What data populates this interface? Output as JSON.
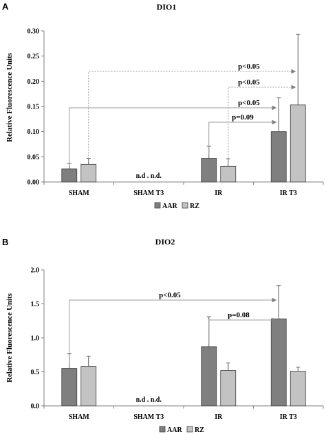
{
  "panels": [
    {
      "letter": "A"
    },
    {
      "letter": "B"
    }
  ],
  "colors": {
    "aar": "#7f7f7f",
    "rz": "#c3c3c3",
    "bar_edge": "#404040",
    "axis": "#7f7f7f",
    "bracket": "#9a9a9a",
    "arrow": "#808080"
  },
  "chart_data": [
    {
      "type": "bar",
      "title": "DIO1",
      "ylabel": "Relative Fluorescence Units",
      "xlabel": "",
      "ylim": [
        0,
        0.3
      ],
      "yticks": [
        "0.00",
        "0.05",
        "0.10",
        "0.15",
        "0.20",
        "0.25",
        "0.30"
      ],
      "categories": [
        "SHAM",
        "SHAM T3",
        "IR",
        "IR T3"
      ],
      "series": [
        {
          "name": "AAR",
          "values": [
            0.026,
            null,
            0.047,
            0.1
          ],
          "errors": [
            0.011,
            null,
            0.024,
            0.067
          ]
        },
        {
          "name": "RZ",
          "values": [
            0.035,
            null,
            0.031,
            0.153
          ],
          "errors": [
            0.012,
            null,
            0.015,
            0.14
          ]
        }
      ],
      "annotations": [
        "n.d . n.d."
      ],
      "comparisons": [
        {
          "label": "p<0.05",
          "from_category": "SHAM",
          "from_series": "RZ",
          "to_category": "IR T3",
          "to_series": "RZ",
          "style": "dotted"
        },
        {
          "label": "p<0.05",
          "from_category": "IR",
          "from_series": "RZ",
          "to_category": "IR T3",
          "to_series": "RZ",
          "style": "dotted"
        },
        {
          "label": "p<0.05",
          "from_category": "SHAM",
          "from_series": "AAR",
          "to_category": "IR T3",
          "to_series": "AAR",
          "style": "solid"
        },
        {
          "label": "p=0.09",
          "from_category": "IR",
          "from_series": "AAR",
          "to_category": "IR T3",
          "to_series": "AAR",
          "style": "solid"
        }
      ],
      "legend": {
        "position": "bottom",
        "items": [
          "AAR",
          "RZ"
        ]
      }
    },
    {
      "type": "bar",
      "title": "DIO2",
      "ylabel": "Relative Fluorescence Units",
      "xlabel": "",
      "ylim": [
        0,
        2.0
      ],
      "yticks": [
        "0.0",
        "0.5",
        "1.0",
        "1.5",
        "2.0"
      ],
      "categories": [
        "SHAM",
        "SHAM T3",
        "IR",
        "IR T3"
      ],
      "series": [
        {
          "name": "AAR",
          "values": [
            0.55,
            null,
            0.87,
            1.28
          ],
          "errors": [
            0.22,
            null,
            0.44,
            0.49
          ]
        },
        {
          "name": "RZ",
          "values": [
            0.58,
            null,
            0.52,
            0.51
          ],
          "errors": [
            0.15,
            null,
            0.11,
            0.06
          ]
        }
      ],
      "annotations": [
        "n.d . n.d."
      ],
      "comparisons": [
        {
          "label": "p<0.05",
          "from_category": "SHAM",
          "from_series": "AAR",
          "to_category": "IR T3",
          "to_series": "AAR",
          "style": "solid"
        },
        {
          "label": "p=0.08",
          "from_category": "IR",
          "from_series": "AAR",
          "to_category": "IR T3",
          "to_series": "AAR",
          "style": "solid"
        }
      ],
      "legend": {
        "position": "bottom",
        "items": [
          "AAR",
          "RZ"
        ]
      }
    }
  ]
}
